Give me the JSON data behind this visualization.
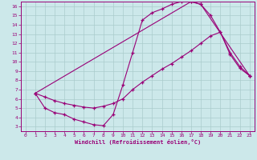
{
  "xlabel": "Windchill (Refroidissement éolien,°C)",
  "bg_color": "#cce8ea",
  "line_color": "#990077",
  "grid_color": "#aacccc",
  "xlim": [
    -0.5,
    23.5
  ],
  "ylim": [
    2.5,
    16.5
  ],
  "xticks": [
    0,
    1,
    2,
    3,
    4,
    5,
    6,
    7,
    8,
    9,
    10,
    11,
    12,
    13,
    14,
    15,
    16,
    17,
    18,
    19,
    20,
    21,
    22,
    23
  ],
  "yticks": [
    3,
    4,
    5,
    6,
    7,
    8,
    9,
    10,
    11,
    12,
    13,
    14,
    15,
    16
  ],
  "line1_x": [
    1,
    2,
    3,
    4,
    5,
    6,
    7,
    8,
    9,
    10,
    11,
    12,
    13,
    14,
    15,
    16,
    17,
    18,
    23
  ],
  "line1_y": [
    6.6,
    5.0,
    4.5,
    4.3,
    3.8,
    3.5,
    3.2,
    3.1,
    4.3,
    7.5,
    11.0,
    14.5,
    15.3,
    15.7,
    16.2,
    16.5,
    16.5,
    16.2,
    8.5
  ],
  "line2_x": [
    1,
    17,
    18,
    19,
    20,
    21,
    22,
    23
  ],
  "line2_y": [
    6.6,
    16.5,
    16.2,
    15.0,
    13.2,
    10.8,
    9.3,
    8.5
  ],
  "line3_x": [
    1,
    2,
    3,
    4,
    5,
    6,
    7,
    8,
    9,
    10,
    11,
    12,
    13,
    14,
    15,
    16,
    17,
    18,
    19,
    20,
    21,
    22,
    23
  ],
  "line3_y": [
    6.6,
    6.2,
    5.8,
    5.5,
    5.3,
    5.1,
    5.0,
    5.2,
    5.5,
    6.0,
    7.0,
    7.8,
    8.5,
    9.2,
    9.8,
    10.5,
    11.2,
    12.0,
    12.8,
    13.2,
    11.0,
    9.5,
    8.5
  ]
}
